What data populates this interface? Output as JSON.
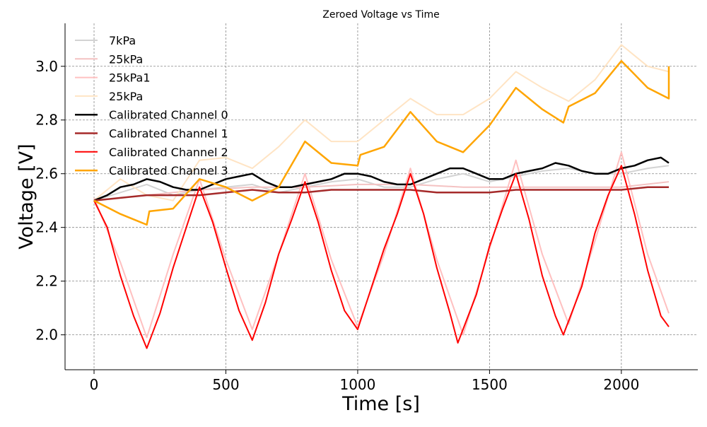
{
  "chart_data": {
    "type": "line",
    "title": "Zeroed Voltage vs Time",
    "xlabel": "Time [s]",
    "ylabel": "Voltage [V]",
    "xlim": [
      -110,
      2290
    ],
    "ylim": [
      1.87,
      3.16
    ],
    "xticks": [
      0,
      500,
      1000,
      1500,
      2000
    ],
    "xtick_labels": [
      "0",
      "500",
      "1000",
      "1500",
      "2000"
    ],
    "yticks": [
      2.0,
      2.2,
      2.4,
      2.6,
      2.8,
      3.0
    ],
    "ytick_labels": [
      "2.0",
      "2.2",
      "2.4",
      "2.6",
      "2.8",
      "3.0"
    ],
    "grid": true,
    "legend_position": "top-left",
    "series": [
      {
        "name": "7kPa",
        "color": "#d3d3d3",
        "width": 2,
        "points": [
          [
            0,
            2.5
          ],
          [
            100,
            2.53
          ],
          [
            200,
            2.56
          ],
          [
            300,
            2.52
          ],
          [
            400,
            2.54
          ],
          [
            500,
            2.55
          ],
          [
            600,
            2.56
          ],
          [
            700,
            2.53
          ],
          [
            800,
            2.55
          ],
          [
            900,
            2.57
          ],
          [
            1000,
            2.58
          ],
          [
            1100,
            2.55
          ],
          [
            1200,
            2.55
          ],
          [
            1300,
            2.58
          ],
          [
            1400,
            2.6
          ],
          [
            1500,
            2.57
          ],
          [
            1600,
            2.59
          ],
          [
            1700,
            2.61
          ],
          [
            1800,
            2.62
          ],
          [
            1900,
            2.6
          ],
          [
            2000,
            2.6
          ],
          [
            2100,
            2.62
          ],
          [
            2180,
            2.63
          ]
        ]
      },
      {
        "name": "25kPa",
        "color": "#f4c2c2",
        "width": 2,
        "points": [
          [
            0,
            2.5
          ],
          [
            200,
            2.52
          ],
          [
            400,
            2.54
          ],
          [
            600,
            2.55
          ],
          [
            800,
            2.55
          ],
          [
            1000,
            2.56
          ],
          [
            1200,
            2.56
          ],
          [
            1400,
            2.55
          ],
          [
            1600,
            2.55
          ],
          [
            1800,
            2.55
          ],
          [
            2000,
            2.55
          ],
          [
            2180,
            2.57
          ]
        ]
      },
      {
        "name": "25kPa1",
        "color": "#ffc0c0",
        "width": 2,
        "points": [
          [
            0,
            2.51
          ],
          [
            100,
            2.27
          ],
          [
            200,
            1.99
          ],
          [
            300,
            2.3
          ],
          [
            400,
            2.58
          ],
          [
            500,
            2.28
          ],
          [
            600,
            2.02
          ],
          [
            700,
            2.3
          ],
          [
            800,
            2.6
          ],
          [
            900,
            2.28
          ],
          [
            1000,
            2.03
          ],
          [
            1100,
            2.3
          ],
          [
            1200,
            2.62
          ],
          [
            1300,
            2.28
          ],
          [
            1400,
            2.0
          ],
          [
            1500,
            2.32
          ],
          [
            1600,
            2.65
          ],
          [
            1700,
            2.3
          ],
          [
            1800,
            2.04
          ],
          [
            1900,
            2.35
          ],
          [
            2000,
            2.68
          ],
          [
            2100,
            2.3
          ],
          [
            2180,
            2.08
          ]
        ]
      },
      {
        "name": "25kPa",
        "color": "#ffe4c4",
        "width": 2,
        "points": [
          [
            0,
            2.5
          ],
          [
            100,
            2.58
          ],
          [
            200,
            2.52
          ],
          [
            300,
            2.5
          ],
          [
            400,
            2.65
          ],
          [
            500,
            2.66
          ],
          [
            600,
            2.62
          ],
          [
            700,
            2.7
          ],
          [
            800,
            2.8
          ],
          [
            900,
            2.72
          ],
          [
            1000,
            2.72
          ],
          [
            1100,
            2.8
          ],
          [
            1200,
            2.88
          ],
          [
            1300,
            2.82
          ],
          [
            1400,
            2.82
          ],
          [
            1500,
            2.88
          ],
          [
            1600,
            2.98
          ],
          [
            1700,
            2.92
          ],
          [
            1800,
            2.87
          ],
          [
            1900,
            2.95
          ],
          [
            2000,
            3.08
          ],
          [
            2100,
            3.0
          ],
          [
            2180,
            2.98
          ]
        ]
      },
      {
        "name": "Calibrated Channel 0",
        "color": "#000000",
        "width": 2.5,
        "points": [
          [
            0,
            2.5
          ],
          [
            50,
            2.52
          ],
          [
            100,
            2.55
          ],
          [
            150,
            2.56
          ],
          [
            200,
            2.58
          ],
          [
            250,
            2.57
          ],
          [
            300,
            2.55
          ],
          [
            350,
            2.54
          ],
          [
            400,
            2.54
          ],
          [
            450,
            2.56
          ],
          [
            500,
            2.58
          ],
          [
            550,
            2.59
          ],
          [
            600,
            2.6
          ],
          [
            650,
            2.57
          ],
          [
            700,
            2.55
          ],
          [
            750,
            2.55
          ],
          [
            800,
            2.56
          ],
          [
            850,
            2.57
          ],
          [
            900,
            2.58
          ],
          [
            950,
            2.6
          ],
          [
            1000,
            2.6
          ],
          [
            1050,
            2.59
          ],
          [
            1100,
            2.57
          ],
          [
            1150,
            2.56
          ],
          [
            1200,
            2.56
          ],
          [
            1250,
            2.58
          ],
          [
            1300,
            2.6
          ],
          [
            1350,
            2.62
          ],
          [
            1400,
            2.62
          ],
          [
            1450,
            2.6
          ],
          [
            1500,
            2.58
          ],
          [
            1550,
            2.58
          ],
          [
            1600,
            2.6
          ],
          [
            1650,
            2.61
          ],
          [
            1700,
            2.62
          ],
          [
            1750,
            2.64
          ],
          [
            1800,
            2.63
          ],
          [
            1850,
            2.61
          ],
          [
            1900,
            2.6
          ],
          [
            1950,
            2.6
          ],
          [
            2000,
            2.62
          ],
          [
            2050,
            2.63
          ],
          [
            2100,
            2.65
          ],
          [
            2150,
            2.66
          ],
          [
            2180,
            2.64
          ]
        ]
      },
      {
        "name": "Calibrated Channel 1",
        "color": "#a52a2a",
        "width": 2.5,
        "points": [
          [
            0,
            2.5
          ],
          [
            100,
            2.51
          ],
          [
            200,
            2.52
          ],
          [
            300,
            2.52
          ],
          [
            400,
            2.52
          ],
          [
            500,
            2.53
          ],
          [
            600,
            2.54
          ],
          [
            700,
            2.53
          ],
          [
            800,
            2.53
          ],
          [
            900,
            2.54
          ],
          [
            1000,
            2.54
          ],
          [
            1100,
            2.54
          ],
          [
            1200,
            2.54
          ],
          [
            1300,
            2.53
          ],
          [
            1400,
            2.53
          ],
          [
            1500,
            2.53
          ],
          [
            1600,
            2.54
          ],
          [
            1700,
            2.54
          ],
          [
            1800,
            2.54
          ],
          [
            1900,
            2.54
          ],
          [
            2000,
            2.54
          ],
          [
            2100,
            2.55
          ],
          [
            2180,
            2.55
          ]
        ]
      },
      {
        "name": "Calibrated Channel 2",
        "color": "#ff0000",
        "width": 2,
        "points": [
          [
            0,
            2.5
          ],
          [
            50,
            2.4
          ],
          [
            100,
            2.22
          ],
          [
            150,
            2.07
          ],
          [
            200,
            1.95
          ],
          [
            250,
            2.08
          ],
          [
            300,
            2.25
          ],
          [
            350,
            2.4
          ],
          [
            400,
            2.55
          ],
          [
            450,
            2.42
          ],
          [
            500,
            2.25
          ],
          [
            550,
            2.09
          ],
          [
            600,
            1.98
          ],
          [
            650,
            2.12
          ],
          [
            700,
            2.3
          ],
          [
            750,
            2.43
          ],
          [
            800,
            2.57
          ],
          [
            850,
            2.42
          ],
          [
            900,
            2.24
          ],
          [
            950,
            2.09
          ],
          [
            1000,
            2.02
          ],
          [
            1050,
            2.17
          ],
          [
            1100,
            2.32
          ],
          [
            1150,
            2.45
          ],
          [
            1200,
            2.6
          ],
          [
            1250,
            2.45
          ],
          [
            1300,
            2.25
          ],
          [
            1350,
            2.08
          ],
          [
            1380,
            1.97
          ],
          [
            1450,
            2.15
          ],
          [
            1500,
            2.33
          ],
          [
            1550,
            2.47
          ],
          [
            1600,
            2.6
          ],
          [
            1650,
            2.43
          ],
          [
            1700,
            2.22
          ],
          [
            1750,
            2.07
          ],
          [
            1780,
            2.0
          ],
          [
            1850,
            2.18
          ],
          [
            1900,
            2.38
          ],
          [
            1950,
            2.52
          ],
          [
            2000,
            2.63
          ],
          [
            2050,
            2.45
          ],
          [
            2100,
            2.24
          ],
          [
            2150,
            2.07
          ],
          [
            2180,
            2.03
          ]
        ]
      },
      {
        "name": "Calibrated Channel 3",
        "color": "#ffa500",
        "width": 2.5,
        "points": [
          [
            0,
            2.5
          ],
          [
            100,
            2.45
          ],
          [
            150,
            2.43
          ],
          [
            200,
            2.41
          ],
          [
            210,
            2.46
          ],
          [
            300,
            2.47
          ],
          [
            400,
            2.58
          ],
          [
            500,
            2.55
          ],
          [
            600,
            2.5
          ],
          [
            700,
            2.55
          ],
          [
            800,
            2.72
          ],
          [
            900,
            2.64
          ],
          [
            1000,
            2.63
          ],
          [
            1010,
            2.67
          ],
          [
            1100,
            2.7
          ],
          [
            1200,
            2.83
          ],
          [
            1300,
            2.72
          ],
          [
            1400,
            2.68
          ],
          [
            1500,
            2.78
          ],
          [
            1600,
            2.92
          ],
          [
            1700,
            2.84
          ],
          [
            1780,
            2.79
          ],
          [
            1800,
            2.85
          ],
          [
            1900,
            2.9
          ],
          [
            2000,
            3.02
          ],
          [
            2100,
            2.92
          ],
          [
            2180,
            2.88
          ],
          [
            2180,
            3.0
          ]
        ]
      }
    ]
  }
}
